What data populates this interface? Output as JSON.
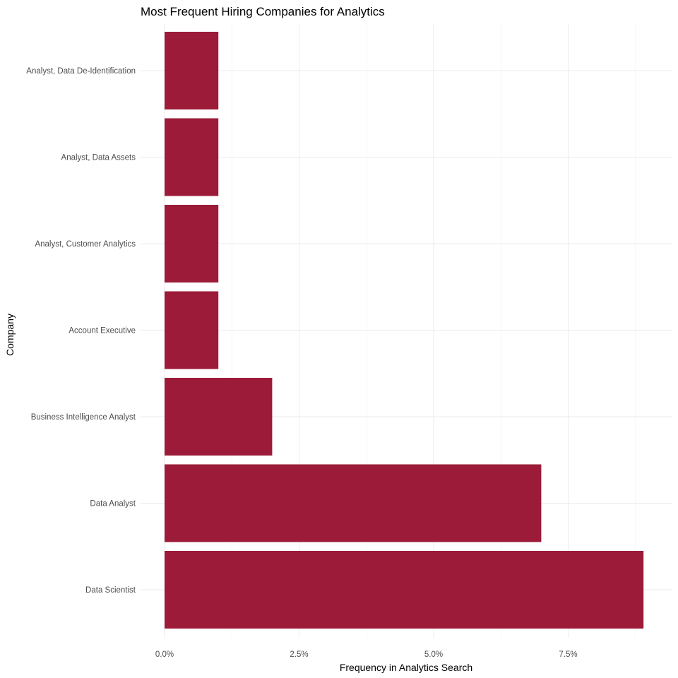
{
  "chart_data": {
    "type": "bar",
    "orientation": "horizontal",
    "title": "Most Frequent Hiring Companies for Analytics",
    "xlabel": "Frequency in Analytics Search",
    "ylabel": "Company",
    "categories": [
      "Data Scientist",
      "Data Analyst",
      "Business Intelligence Analyst",
      "Account Executive",
      "Analyst, Customer Analytics",
      "Analyst, Data Assets",
      "Analyst, Data De-Identification"
    ],
    "values": [
      8.9,
      7.0,
      2.0,
      1.0,
      1.0,
      1.0,
      1.0
    ],
    "xlim": [
      0,
      9.3
    ],
    "x_ticks": [
      0,
      2.5,
      5.0,
      7.5
    ],
    "x_tick_labels": [
      "0.0%",
      "2.5%",
      "5.0%",
      "7.5%"
    ],
    "grid": true,
    "legend": "none",
    "bar_color": "#9b1b38"
  }
}
